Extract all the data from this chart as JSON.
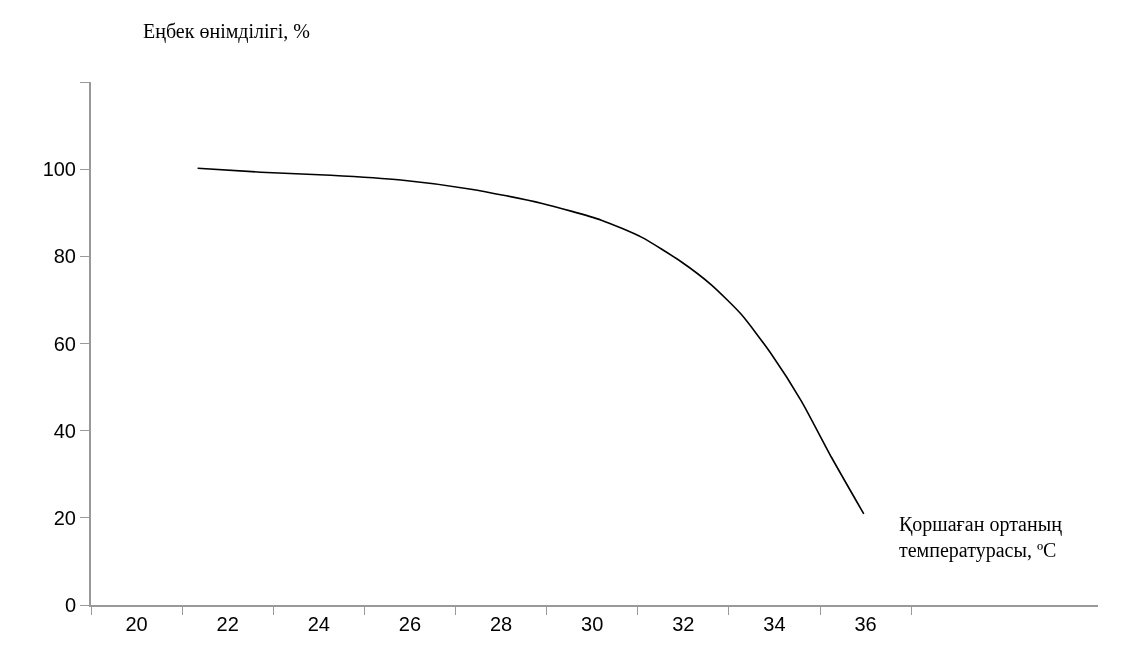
{
  "chart_data": {
    "type": "line",
    "xlabel": "Қоршаған ортаның\nтемпературасы, ºC",
    "ylabel": "Еңбек өнімділігі, %",
    "series": [
      {
        "color": "#000000",
        "x": [
          21.34,
          22.73,
          24.26,
          25.8,
          27.34,
          28.88,
          30.2,
          31.08,
          31.96,
          32.62,
          33.27,
          33.93,
          34.59,
          35.25,
          35.96
        ],
        "values": [
          100.2,
          99.3,
          98.6,
          97.5,
          95.4,
          92.2,
          88.3,
          84.4,
          78.7,
          73.4,
          66.7,
          57.6,
          46.8,
          33.9,
          20.9
        ]
      }
    ],
    "xlim": [
      19,
      41.1
    ],
    "xticks": [
      {
        "value": 19,
        "label": null
      },
      20,
      {
        "value": 21,
        "label": null
      },
      22,
      {
        "value": 23,
        "label": null
      },
      24,
      {
        "value": 25,
        "label": null
      },
      26,
      {
        "value": 27,
        "label": null
      },
      28,
      {
        "value": 29,
        "label": null
      },
      30,
      {
        "value": 31,
        "label": null
      },
      32,
      {
        "value": 33,
        "label": null
      },
      34,
      {
        "value": 35,
        "label": null
      },
      36,
      {
        "value": 37,
        "label": null
      }
    ],
    "ylim": [
      0,
      120
    ],
    "yticks": [
      0,
      20,
      40,
      60,
      80,
      100,
      {
        "value": 120,
        "label": null
      }
    ],
    "marker": "none",
    "line_style": "solid"
  }
}
